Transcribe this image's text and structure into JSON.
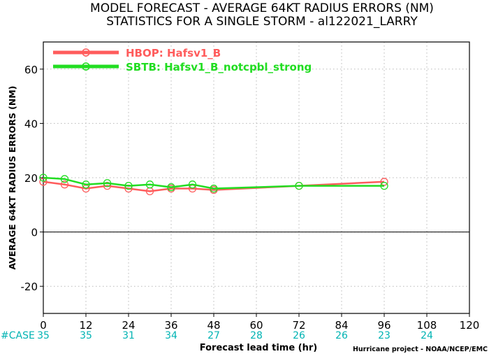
{
  "chart_data": {
    "type": "line",
    "title": "MODEL FORECAST - AVERAGE 64KT RADIUS ERRORS (NM)",
    "subtitle": "STATISTICS FOR A SINGLE STORM - al122021_LARRY",
    "xlabel": "Forecast lead time (hr)",
    "ylabel": "AVERAGE 64KT RADIUS ERRORS (NM)",
    "xlim": [
      0,
      120
    ],
    "ylim": [
      -30,
      70
    ],
    "xticks": [
      0,
      12,
      24,
      36,
      48,
      60,
      72,
      84,
      96,
      108,
      120
    ],
    "yticks": [
      -20,
      0,
      20,
      40,
      60
    ],
    "grid": true,
    "legend_position": "top-left",
    "case_label": "#CASE",
    "cases": [
      {
        "x": 0,
        "n": "35"
      },
      {
        "x": 12,
        "n": "35"
      },
      {
        "x": 24,
        "n": "31"
      },
      {
        "x": 36,
        "n": "34"
      },
      {
        "x": 48,
        "n": "27"
      },
      {
        "x": 60,
        "n": "28"
      },
      {
        "x": 72,
        "n": "26"
      },
      {
        "x": 84,
        "n": "26"
      },
      {
        "x": 96,
        "n": "23"
      },
      {
        "x": 108,
        "n": "24"
      }
    ],
    "series": [
      {
        "name": "HBOP: Hafsv1_B",
        "color": "#ff5c5c",
        "x": [
          0,
          6,
          12,
          18,
          24,
          30,
          36,
          42,
          48,
          72,
          96
        ],
        "y": [
          18.5,
          17.5,
          16,
          17,
          16,
          15,
          16,
          16,
          15.5,
          17,
          18.5
        ]
      },
      {
        "name": "SBTB: Hafsv1_B_notcpbl_strong",
        "color": "#22dd22",
        "x": [
          0,
          6,
          12,
          18,
          24,
          30,
          36,
          42,
          48,
          72,
          96
        ],
        "y": [
          20,
          19.5,
          17.5,
          18,
          17,
          17.5,
          16.5,
          17.5,
          16,
          17,
          17
        ]
      }
    ],
    "credit": "Hurricane project - NOAA/NCEP/EMC"
  }
}
